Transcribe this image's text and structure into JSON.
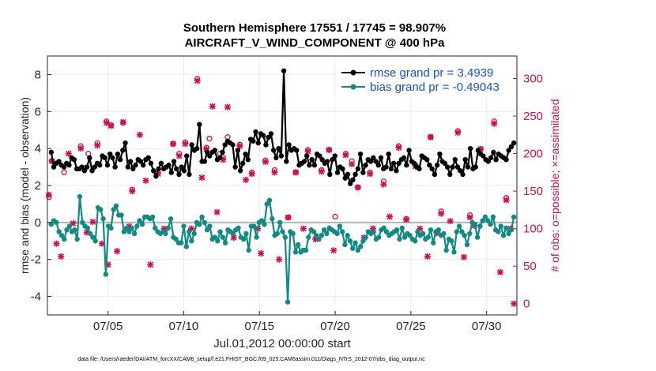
{
  "chart_data": {
    "type": "line",
    "title": "Southern Hemisphere 17551 / 17745 = 98.907%",
    "subtitle": "AIRCRAFT_V_WIND_COMPONENT @ 400 hPa",
    "xlabel": "Jul.01,2012 00:00:00 start",
    "ylabel": "rmse and bias (model - observation)",
    "y2label": "# of obs: o=possible; ×=assimilated",
    "footnote": "data file: /Users/raeder/DAI/ATM_forcXX/CAM6_setup/f.e21.FHIST_BGC.f09_025.CAM6assim.011/Diags_NTrS_2012-07/obs_diag_output.nc",
    "xlim": [
      1,
      32
    ],
    "ylim": [
      -5,
      9
    ],
    "y2lim": [
      -15,
      330
    ],
    "grid": true,
    "x_ticks": [
      5,
      10,
      15,
      20,
      25,
      30
    ],
    "x_tick_labels": [
      "07/05",
      "07/10",
      "07/15",
      "07/20",
      "07/25",
      "07/30"
    ],
    "y_ticks": [
      -4,
      -2,
      0,
      2,
      4,
      6,
      8
    ],
    "y2_ticks": [
      0,
      50,
      100,
      150,
      200,
      250,
      300
    ],
    "legend_placement": "top-right",
    "colors": {
      "rmse": "#000000",
      "bias": "#128a84",
      "obs": "#d0104c",
      "legend_text": "#1a4fd8",
      "zero_line": "#b4b4b4"
    },
    "series": [
      {
        "name": "rmse",
        "label": "rmse grand pr = 3.4939",
        "values": [
          3.8,
          3.0,
          3.2,
          3.3,
          3.1,
          3.0,
          3.2,
          3.1,
          3.5,
          3.4,
          2.9,
          2.9,
          3.0,
          2.8,
          3.0,
          3.5,
          2.8,
          3.0,
          3.2,
          3.1,
          3.6,
          3.5,
          3.1,
          3.7,
          3.5,
          3.0,
          3.7,
          3.4,
          3.9,
          4.3,
          3.0,
          3.3,
          2.9,
          3.1,
          3.4,
          3.3,
          3.1,
          3.4,
          3.5,
          3.2,
          2.8,
          2.5,
          2.9,
          3.2,
          2.9,
          3.0,
          3.1,
          2.7,
          3.3,
          2.9,
          2.6,
          3.0,
          2.8,
          3.6,
          2.6,
          4.2,
          3.9,
          4.0,
          5.3,
          3.3,
          3.3,
          3.8,
          3.6,
          3.8,
          3.9,
          3.4,
          3.5,
          3.8,
          4.2,
          4.4,
          4.3,
          4.2,
          3.0,
          3.9,
          2.8,
          3.2,
          3.7,
          3.4,
          4.5,
          4.4,
          4.9,
          4.3,
          4.8,
          4.7,
          4.2,
          4.6,
          4.8,
          3.9,
          3.5,
          4.0,
          3.6,
          8.2,
          3.3,
          4.2,
          3.9,
          4.0,
          3.9,
          3.1,
          3.2,
          3.3,
          3.6,
          3.1,
          3.4,
          3.1,
          3.7,
          3.6,
          3.4,
          3.2,
          3.3,
          2.6,
          3.4,
          3.6,
          2.7,
          3.0,
          2.9,
          2.4,
          2.6,
          2.1,
          2.3,
          2.6,
          2.9,
          3.7,
          2.7,
          3.1,
          3.4,
          3.3,
          3.5,
          3.3,
          3.1,
          3.5,
          2.9,
          3.0,
          3.7,
          2.9,
          3.2,
          2.8,
          3.2,
          3.4,
          3.5,
          3.1,
          3.9,
          3.3,
          3.2,
          3.0,
          2.9,
          3.6,
          3.5,
          3.4,
          3.1,
          2.9,
          2.6,
          3.1,
          3.7,
          3.3,
          3.2,
          3.0,
          2.6,
          3.0,
          3.4,
          3.0,
          2.8,
          2.6,
          3.4,
          3.0,
          4.0,
          2.9,
          3.0,
          3.9,
          3.7,
          3.6,
          3.4,
          3.3,
          3.5,
          3.8,
          3.4,
          3.7,
          3.6,
          3.5,
          3.4,
          3.9,
          4.1,
          4.3
        ]
      },
      {
        "name": "bias",
        "label": "bias grand pr = -0.49043",
        "values": [
          -0.1,
          0.1,
          0.0,
          -0.5,
          -0.7,
          -0.9,
          -0.4,
          -0.2,
          -0.5,
          -0.4,
          -0.9,
          1.4,
          0.0,
          -0.2,
          -0.3,
          -0.6,
          -0.8,
          -1.0,
          0.8,
          0.7,
          0.2,
          -2.8,
          -0.2,
          -0.3,
          0.7,
          0.9,
          0.4,
          0.4,
          -0.5,
          -0.3,
          -0.5,
          -0.3,
          -0.6,
          -0.2,
          0.1,
          -0.1,
          0.3,
          0.3,
          0.2,
          0.3,
          -0.3,
          -0.5,
          -0.6,
          -0.5,
          -0.6,
          -0.3,
          0.2,
          -0.8,
          -0.9,
          -1.1,
          -1.1,
          -0.2,
          -1.3,
          -0.5,
          -1.0,
          -0.6,
          0.0,
          -0.1,
          0.3,
          0.0,
          -0.4,
          -0.2,
          -0.9,
          -0.8,
          -1.0,
          -0.5,
          -0.8,
          -1.1,
          -0.4,
          -0.5,
          -0.6,
          -0.4,
          -0.3,
          -0.8,
          -0.9,
          -0.6,
          -1.5,
          -0.2,
          -0.2,
          -0.8,
          0.0,
          0.1,
          -0.1,
          1.0,
          1.2,
          0.2,
          -0.7,
          -0.6,
          0.0,
          -0.5,
          -0.8,
          -4.3,
          -0.5,
          -0.6,
          -1.6,
          -1.2,
          -1.6,
          -1.5,
          -1.5,
          -0.8,
          -0.4,
          -0.5,
          -0.7,
          -0.9,
          -0.7,
          -0.4,
          -0.6,
          -0.3,
          -0.4,
          -0.5,
          -0.6,
          -0.2,
          -0.5,
          -1.2,
          -0.7,
          -1.0,
          -1.4,
          -1.1,
          -1.5,
          -1.3,
          -1.0,
          -0.8,
          -0.5,
          -0.6,
          -0.5,
          -0.9,
          -0.8,
          -0.4,
          -0.3,
          -0.5,
          -0.7,
          -0.6,
          -0.5,
          -0.4,
          -0.9,
          -0.3,
          -0.8,
          -0.6,
          -0.7,
          -0.9,
          -1.0,
          -0.5,
          -0.7,
          -0.6,
          -0.9,
          -0.8,
          -0.4,
          -1.1,
          -0.5,
          -0.4,
          -0.7,
          -0.6,
          -1.5,
          -0.9,
          -1.0,
          -1.6,
          -0.5,
          -0.2,
          -0.5,
          -0.7,
          -1.2,
          -0.6,
          0.0,
          -0.1,
          -0.8,
          -0.2,
          0.1,
          0.3,
          0.1,
          -0.1,
          0.3,
          -0.4,
          -0.5,
          -0.2,
          -0.7,
          -0.3,
          -0.6,
          -0.4,
          0.3
        ]
      }
    ],
    "obs_possible": [
      [
        1.1,
        142
      ],
      [
        1.3,
        190
      ],
      [
        2.1,
        175
      ],
      [
        3.2,
        210
      ],
      [
        3.7,
        200
      ],
      [
        4.3,
        214
      ],
      [
        4.9,
        243
      ],
      [
        5.2,
        238
      ],
      [
        6.0,
        241
      ],
      [
        6.6,
        152
      ],
      [
        8.3,
        175
      ],
      [
        9.3,
        213
      ],
      [
        9.7,
        200
      ],
      [
        10.1,
        215
      ],
      [
        10.9,
        300
      ],
      [
        11.5,
        208
      ],
      [
        11.7,
        220
      ],
      [
        12.4,
        200
      ],
      [
        12.6,
        195
      ],
      [
        12.9,
        222
      ],
      [
        13.7,
        212
      ],
      [
        14.5,
        175
      ],
      [
        15.4,
        191
      ],
      [
        16.0,
        178
      ],
      [
        16.9,
        115
      ],
      [
        17.4,
        175
      ],
      [
        18.2,
        205
      ],
      [
        19.1,
        178
      ],
      [
        19.6,
        205
      ],
      [
        20.0,
        116
      ],
      [
        20.7,
        200
      ],
      [
        21.1,
        190
      ],
      [
        21.5,
        155
      ],
      [
        22.3,
        175
      ],
      [
        23.2,
        163
      ],
      [
        24.2,
        210
      ],
      [
        24.7,
        113
      ],
      [
        25.3,
        185
      ],
      [
        26.3,
        222
      ],
      [
        27.0,
        123
      ],
      [
        28.1,
        230
      ],
      [
        28.9,
        118
      ],
      [
        29.6,
        206
      ],
      [
        30.5,
        243
      ],
      [
        31.3,
        141
      ]
    ],
    "obs_assimilated": [
      [
        1.1,
        145
      ],
      [
        1.3,
        190
      ],
      [
        1.6,
        80
      ],
      [
        1.9,
        63
      ],
      [
        2.4,
        200
      ],
      [
        2.7,
        107
      ],
      [
        3.2,
        207
      ],
      [
        3.6,
        95
      ],
      [
        4.0,
        109
      ],
      [
        4.3,
        211
      ],
      [
        4.6,
        80
      ],
      [
        4.9,
        241
      ],
      [
        5.0,
        52
      ],
      [
        5.2,
        237
      ],
      [
        5.6,
        70
      ],
      [
        6.0,
        242
      ],
      [
        6.4,
        103
      ],
      [
        6.6,
        150
      ],
      [
        7.1,
        225
      ],
      [
        7.5,
        164
      ],
      [
        7.8,
        52
      ],
      [
        8.3,
        173
      ],
      [
        8.7,
        100
      ],
      [
        9.3,
        213
      ],
      [
        9.7,
        197
      ],
      [
        10.1,
        213
      ],
      [
        10.5,
        100
      ],
      [
        10.9,
        297
      ],
      [
        11.2,
        168
      ],
      [
        11.5,
        206
      ],
      [
        11.9,
        263
      ],
      [
        12.2,
        122
      ],
      [
        12.6,
        192
      ],
      [
        12.9,
        262
      ],
      [
        13.3,
        88
      ],
      [
        13.7,
        210
      ],
      [
        14.1,
        165
      ],
      [
        14.5,
        173
      ],
      [
        14.9,
        100
      ],
      [
        15.1,
        67
      ],
      [
        15.4,
        189
      ],
      [
        16.0,
        175
      ],
      [
        16.3,
        59
      ],
      [
        16.9,
        115
      ],
      [
        17.4,
        175
      ],
      [
        17.9,
        100
      ],
      [
        18.2,
        203
      ],
      [
        18.7,
        86
      ],
      [
        19.1,
        176
      ],
      [
        19.6,
        205
      ],
      [
        19.9,
        71
      ],
      [
        20.7,
        198
      ],
      [
        21.1,
        186
      ],
      [
        21.5,
        155
      ],
      [
        21.9,
        88
      ],
      [
        22.3,
        173
      ],
      [
        22.5,
        100
      ],
      [
        23.2,
        159
      ],
      [
        23.6,
        116
      ],
      [
        24.2,
        208
      ],
      [
        24.7,
        112
      ],
      [
        25.3,
        183
      ],
      [
        25.6,
        100
      ],
      [
        26.1,
        63
      ],
      [
        26.3,
        222
      ],
      [
        26.7,
        94
      ],
      [
        27.0,
        120
      ],
      [
        27.6,
        110
      ],
      [
        28.1,
        228
      ],
      [
        28.5,
        62
      ],
      [
        28.9,
        115
      ],
      [
        29.2,
        104
      ],
      [
        29.6,
        206
      ],
      [
        30.5,
        240
      ],
      [
        30.9,
        42
      ],
      [
        31.3,
        138
      ],
      [
        31.6,
        100
      ],
      [
        31.8,
        0
      ]
    ]
  }
}
